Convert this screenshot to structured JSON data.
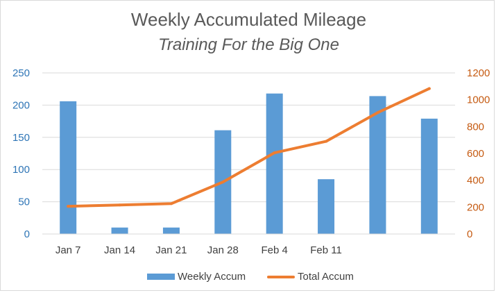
{
  "chart_data": {
    "type": "bar",
    "title": "Weekly Accumulated Mileage",
    "subtitle": "Training For the Big One",
    "categories": [
      "Jan 7",
      "Jan 14",
      "Jan 21",
      "Jan 28",
      "Feb 4",
      "Feb 11",
      "",
      ""
    ],
    "series": [
      {
        "name": "Weekly Accum",
        "type": "bar",
        "axis": "left",
        "values": [
          206,
          10,
          10,
          161,
          218,
          85,
          214,
          179
        ]
      },
      {
        "name": "Total Accum",
        "type": "line",
        "axis": "right",
        "values": [
          206,
          216,
          226,
          387,
          605,
          690,
          904,
          1083
        ]
      }
    ],
    "y_left": {
      "min": 0,
      "max": 250,
      "ticks": [
        0,
        50,
        100,
        150,
        200,
        250
      ]
    },
    "y_right": {
      "min": 0,
      "max": 1200,
      "ticks": [
        0,
        200,
        400,
        600,
        800,
        1000,
        1200
      ]
    },
    "grid": true,
    "legend_position": "bottom",
    "colors": {
      "bar": "#5b9bd5",
      "line": "#ed7d31",
      "left_axis_text": "#2e75b6",
      "right_axis_text": "#c55a11",
      "grid": "#d9d9d9"
    }
  }
}
